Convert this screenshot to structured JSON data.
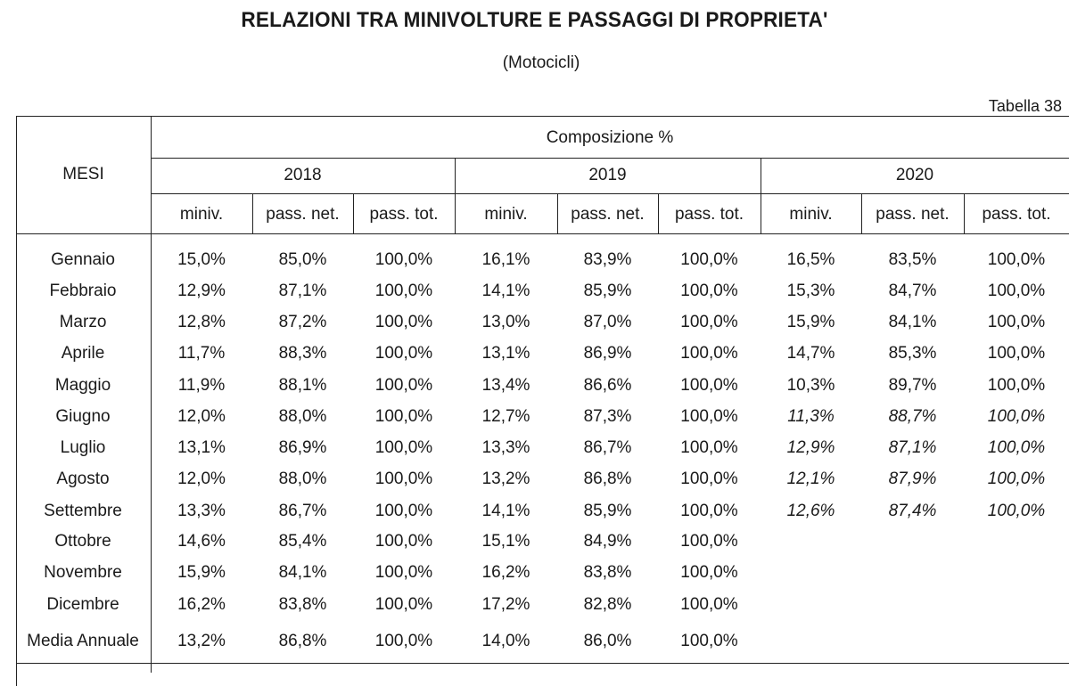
{
  "title": "RELAZIONI TRA MINIVOLTURE E PASSAGGI DI PROPRIETA'",
  "subtitle": "(Motocicli)",
  "table_label": "Tabella 38",
  "header": {
    "months_label": "MESI",
    "group_label": "Composizione %",
    "years": [
      "2018",
      "2019",
      "2020"
    ],
    "subcolumns": [
      "miniv.",
      "pass. net.",
      "pass. tot."
    ]
  },
  "rows": [
    {
      "month": "Gennaio",
      "values": [
        "15,0%",
        "85,0%",
        "100,0%",
        "16,1%",
        "83,9%",
        "100,0%",
        "16,5%",
        "83,5%",
        "100,0%"
      ],
      "provisional_2020": false
    },
    {
      "month": "Febbraio",
      "values": [
        "12,9%",
        "87,1%",
        "100,0%",
        "14,1%",
        "85,9%",
        "100,0%",
        "15,3%",
        "84,7%",
        "100,0%"
      ],
      "provisional_2020": false
    },
    {
      "month": "Marzo",
      "values": [
        "12,8%",
        "87,2%",
        "100,0%",
        "13,0%",
        "87,0%",
        "100,0%",
        "15,9%",
        "84,1%",
        "100,0%"
      ],
      "provisional_2020": false
    },
    {
      "month": "Aprile",
      "values": [
        "11,7%",
        "88,3%",
        "100,0%",
        "13,1%",
        "86,9%",
        "100,0%",
        "14,7%",
        "85,3%",
        "100,0%"
      ],
      "provisional_2020": false
    },
    {
      "month": "Maggio",
      "values": [
        "11,9%",
        "88,1%",
        "100,0%",
        "13,4%",
        "86,6%",
        "100,0%",
        "10,3%",
        "89,7%",
        "100,0%"
      ],
      "provisional_2020": false
    },
    {
      "month": "Giugno",
      "values": [
        "12,0%",
        "88,0%",
        "100,0%",
        "12,7%",
        "87,3%",
        "100,0%",
        "11,3%",
        "88,7%",
        "100,0%"
      ],
      "provisional_2020": true
    },
    {
      "month": "Luglio",
      "values": [
        "13,1%",
        "86,9%",
        "100,0%",
        "13,3%",
        "86,7%",
        "100,0%",
        "12,9%",
        "87,1%",
        "100,0%"
      ],
      "provisional_2020": true
    },
    {
      "month": "Agosto",
      "values": [
        "12,0%",
        "88,0%",
        "100,0%",
        "13,2%",
        "86,8%",
        "100,0%",
        "12,1%",
        "87,9%",
        "100,0%"
      ],
      "provisional_2020": true
    },
    {
      "month": "Settembre",
      "values": [
        "13,3%",
        "86,7%",
        "100,0%",
        "14,1%",
        "85,9%",
        "100,0%",
        "12,6%",
        "87,4%",
        "100,0%"
      ],
      "provisional_2020": true
    },
    {
      "month": "Ottobre",
      "values": [
        "14,6%",
        "85,4%",
        "100,0%",
        "15,1%",
        "84,9%",
        "100,0%",
        "",
        "",
        ""
      ],
      "provisional_2020": false
    },
    {
      "month": "Novembre",
      "values": [
        "15,9%",
        "84,1%",
        "100,0%",
        "16,2%",
        "83,8%",
        "100,0%",
        "",
        "",
        ""
      ],
      "provisional_2020": false
    },
    {
      "month": "Dicembre",
      "values": [
        "16,2%",
        "83,8%",
        "100,0%",
        "17,2%",
        "82,8%",
        "100,0%",
        "",
        "",
        ""
      ],
      "provisional_2020": false
    },
    {
      "month": "Media Annuale",
      "values": [
        "13,2%",
        "86,8%",
        "100,0%",
        "14,0%",
        "86,0%",
        "100,0%",
        "",
        "",
        ""
      ],
      "provisional_2020": false
    }
  ]
}
